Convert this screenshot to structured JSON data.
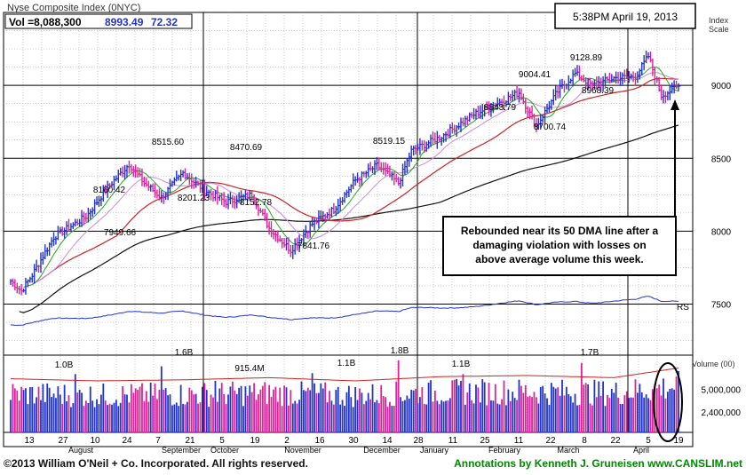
{
  "header": {
    "index_name": "Nyse Composite Index (0NYC)",
    "vol_label": "Vol =8,088,300",
    "price": "8993.49",
    "change": "72.32",
    "timestamp": "5:38PM April 19, 2013",
    "scale_label_line1": "Index",
    "scale_label_line2": "Scale",
    "volume_label": "Volume (00)"
  },
  "colors": {
    "up_bar": "#2233cc",
    "down_bar": "#dd2299",
    "ma50": "#cc2222",
    "ma200": "#111111",
    "ma10": "#22aa22",
    "ma21": "#cc88dd",
    "rs_line": "#2233cc",
    "credit_left": "#111111",
    "credit_right": "#008800"
  },
  "footer": {
    "copyright": "©2013 William O'Neil + Co. Incorporated. All rights reserved.",
    "annotation_credit": "Annotations by Kenneth J. Gruneisen www.CANSLIM.net"
  },
  "annotation": {
    "line1": "Rebounded near its 50 DMA line after a",
    "line2": "damaging violation with losses on",
    "line3": "above average volume this week."
  },
  "chart_data": {
    "type": "candlestick",
    "y_axis": {
      "ticks": [
        7500,
        8000,
        8500,
        9000
      ],
      "labels": [
        "7500",
        "8000",
        "8500",
        "9000"
      ],
      "range": [
        7150,
        9500
      ]
    },
    "volume_axis": {
      "ticks": [
        2400000,
        5000000
      ],
      "labels": [
        "2,400,000",
        "5,000,000"
      ]
    },
    "x_tick_labels": [
      "13",
      "27",
      "10",
      "24",
      "7",
      "21",
      "5",
      "19",
      "2",
      "16",
      "30",
      "14",
      "28",
      "11",
      "25",
      "11",
      "22",
      "8",
      "22",
      "5",
      "19"
    ],
    "month_labels": [
      "August",
      "September",
      "October",
      "November",
      "December",
      "January",
      "February",
      "March",
      "April"
    ],
    "price_labels": [
      "8515.60",
      "8470.69",
      "8160.42",
      "8201.23",
      "8152.78",
      "8519.15",
      "9004.41",
      "9128.89",
      "7949.66",
      "7841.76",
      "8843.79",
      "8968.39",
      "8700.74"
    ],
    "volume_labels": [
      "1.0B",
      "1.6B",
      "915.4M",
      "1.1B",
      "1.8B",
      "1.1B",
      "1.7B"
    ],
    "rs_label": "RS",
    "series": [
      {
        "name": "Price",
        "key_points": [
          [
            0,
            7660
          ],
          [
            5,
            7590
          ],
          [
            10,
            7700
          ],
          [
            20,
            7960
          ],
          [
            35,
            8100
          ],
          [
            45,
            8300
          ],
          [
            55,
            8460
          ],
          [
            62,
            8330
          ],
          [
            70,
            8230
          ],
          [
            80,
            8400
          ],
          [
            90,
            8280
          ],
          [
            100,
            8200
          ],
          [
            112,
            8250
          ],
          [
            120,
            8020
          ],
          [
            130,
            7870
          ],
          [
            140,
            8050
          ],
          [
            150,
            8150
          ],
          [
            160,
            8350
          ],
          [
            170,
            8450
          ],
          [
            180,
            8330
          ],
          [
            186,
            8550
          ],
          [
            200,
            8650
          ],
          [
            215,
            8800
          ],
          [
            225,
            8870
          ],
          [
            236,
            8950
          ],
          [
            244,
            8720
          ],
          [
            254,
            8960
          ],
          [
            262,
            9080
          ],
          [
            270,
            9000
          ],
          [
            280,
            9050
          ],
          [
            290,
            9060
          ],
          [
            296,
            9200
          ],
          [
            302,
            8930
          ],
          [
            310,
            8993
          ]
        ]
      },
      {
        "name": "Volume",
        "key_points": [
          [
            0,
            5000000
          ],
          [
            40,
            4800000
          ],
          [
            80,
            4900000
          ],
          [
            120,
            5100000
          ],
          [
            160,
            4800000
          ],
          [
            200,
            5200000
          ],
          [
            240,
            5300000
          ],
          [
            280,
            5100000
          ],
          [
            310,
            6000000
          ]
        ]
      }
    ]
  }
}
